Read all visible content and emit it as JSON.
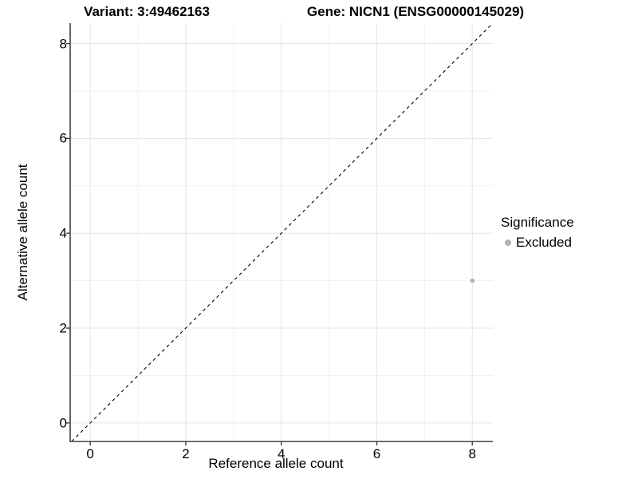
{
  "figure": {
    "background": "#ffffff"
  },
  "chart_data": {
    "type": "scatter",
    "title_left": "Variant: 3:49462163",
    "title_right": "Gene: NICN1 (ENSG00000145029)",
    "xlabel": "Reference allele count",
    "ylabel": "Alternative allele count",
    "xlim": [
      -0.42,
      8.43
    ],
    "ylim": [
      -0.39,
      8.43
    ],
    "x_ticks": [
      0,
      2,
      4,
      6,
      8
    ],
    "y_ticks": [
      0,
      2,
      4,
      6,
      8
    ],
    "x_minor_ticks": [
      1,
      3,
      5,
      7
    ],
    "y_minor_ticks": [
      1,
      3,
      5,
      7
    ],
    "grid": true,
    "identity_line": {
      "style": "dashed",
      "color": "#000000",
      "from": -0.39,
      "to": 8.43
    },
    "series": [
      {
        "name": "Excluded",
        "color": "#b3b3b3",
        "points": [
          {
            "x": 8,
            "y": 3
          }
        ]
      }
    ],
    "legend": {
      "title": "Significance",
      "position": "right",
      "items": [
        {
          "label": "Excluded",
          "color": "#b3b3b3"
        }
      ]
    },
    "colors": {
      "axis_line": "#404040",
      "grid_major": "#e5e5e5",
      "grid_minor": "#f1f1f1",
      "text": "#000000"
    }
  }
}
